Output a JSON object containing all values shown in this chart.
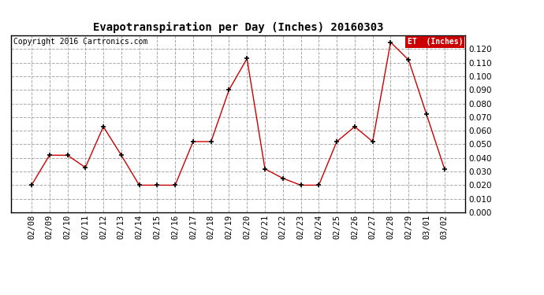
{
  "title": "Evapotranspiration per Day (Inches) 20160303",
  "copyright": "Copyright 2016 Cartronics.com",
  "legend_label": "ET  (Inches)",
  "dates": [
    "02/08",
    "02/09",
    "02/10",
    "02/11",
    "02/12",
    "02/13",
    "02/14",
    "02/15",
    "02/16",
    "02/17",
    "02/18",
    "02/19",
    "02/20",
    "02/21",
    "02/22",
    "02/23",
    "02/24",
    "02/25",
    "02/26",
    "02/27",
    "02/28",
    "02/29",
    "03/01",
    "03/02"
  ],
  "values": [
    0.02,
    0.042,
    0.042,
    0.033,
    0.063,
    0.042,
    0.02,
    0.02,
    0.02,
    0.052,
    0.052,
    0.09,
    0.113,
    0.032,
    0.025,
    0.02,
    0.02,
    0.052,
    0.063,
    0.052,
    0.125,
    0.112,
    0.072,
    0.032
  ],
  "line_color": "#cc0000",
  "marker_color": "#000000",
  "background_color": "#ffffff",
  "grid_color": "#aaaaaa",
  "ylim": [
    0.0,
    0.13
  ],
  "yticks": [
    0.0,
    0.01,
    0.02,
    0.03,
    0.04,
    0.05,
    0.06,
    0.07,
    0.08,
    0.09,
    0.1,
    0.11,
    0.12
  ],
  "legend_bg": "#cc0000",
  "legend_fg": "#ffffff",
  "title_fontsize": 10,
  "tick_fontsize": 7.5,
  "copyright_fontsize": 7
}
